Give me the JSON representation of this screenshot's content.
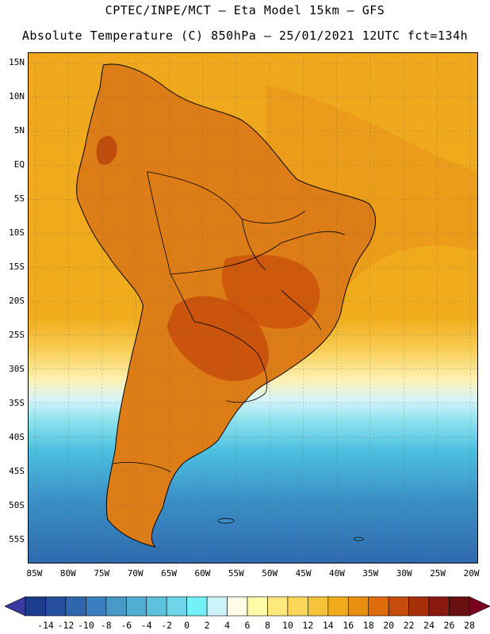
{
  "header": {
    "line1": "CPTEC/INPE/MCT –  Eta Model 15km – GFS",
    "line2": "Absolute Temperature (C) 850hPa – 25/01/2021 12UTC fct=134h"
  },
  "map": {
    "lat_labels": [
      "15N",
      "10N",
      "5N",
      "EQ",
      "5S",
      "10S",
      "15S",
      "20S",
      "25S",
      "30S",
      "35S",
      "40S",
      "45S",
      "50S",
      "55S"
    ],
    "lon_labels": [
      "85W",
      "80W",
      "75W",
      "70W",
      "65W",
      "60W",
      "55W",
      "50W",
      "45W",
      "40W",
      "35W",
      "30W",
      "25W",
      "20W"
    ],
    "lat_values": [
      15,
      10,
      5,
      0,
      -5,
      -10,
      -15,
      -20,
      -25,
      -30,
      -35,
      -40,
      -45,
      -50,
      -55
    ],
    "lon_values": [
      -85,
      -80,
      -75,
      -70,
      -65,
      -60,
      -55,
      -50,
      -45,
      -40,
      -35,
      -30,
      -25,
      -20
    ],
    "extent": {
      "lon_min": -86,
      "lon_max": -19,
      "lat_min": -58.5,
      "lat_max": 16.5
    }
  },
  "legend": {
    "labels": [
      "-14",
      "-12",
      "-10",
      "-8",
      "-6",
      "-4",
      "-2",
      "0",
      "2",
      "4",
      "6",
      "8",
      "10",
      "12",
      "14",
      "16",
      "18",
      "20",
      "22",
      "24",
      "26",
      "28"
    ],
    "colors": [
      "#1c3d8c",
      "#244f9e",
      "#2f66ae",
      "#3b7fbe",
      "#4898c8",
      "#52add2",
      "#5ec2dc",
      "#6dd6e8",
      "#72f2f6",
      "#cdf3fa",
      "#fffbe6",
      "#fffaa8",
      "#ffe97a",
      "#fbd65a",
      "#f5c23a",
      "#f0ac1c",
      "#e88f10",
      "#de6c0c",
      "#c84c0a",
      "#a83008",
      "#8a1a10",
      "#6a1010"
    ],
    "under_color": "#3a3aa0",
    "over_color": "#7a0020"
  },
  "colors": {
    "ocean_warm": "#eea11a",
    "land": "#dd7d17"
  }
}
